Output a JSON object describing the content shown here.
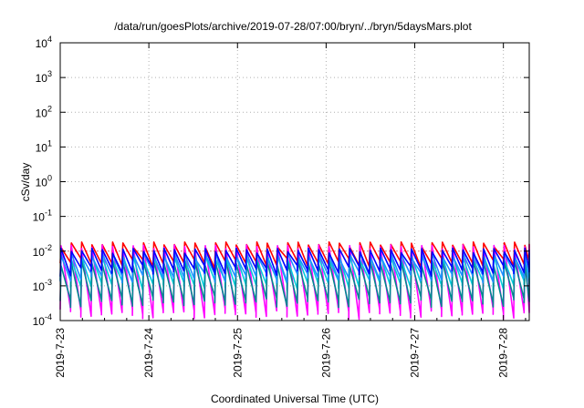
{
  "chart_data": {
    "type": "line",
    "title": "/data/run/goesPlots/archive/2019-07-28/07:00/bryn/../bryn/5daysMars.plot",
    "xlabel": "Coordinated Universal Time (UTC)",
    "ylabel": "cSv/day",
    "y_scale": "log",
    "ylim": [
      0.0001,
      10000
    ],
    "xlim": [
      "2019-07-23 00:00",
      "2019-07-28 07:00"
    ],
    "y_ticks": [
      {
        "value": 0.0001,
        "base": "10",
        "exp": "-4"
      },
      {
        "value": 0.001,
        "base": "10",
        "exp": "-3"
      },
      {
        "value": 0.01,
        "base": "10",
        "exp": "-2"
      },
      {
        "value": 0.1,
        "base": "10",
        "exp": "-1"
      },
      {
        "value": 1,
        "base": "10",
        "exp": "0"
      },
      {
        "value": 10,
        "base": "10",
        "exp": "1"
      },
      {
        "value": 100,
        "base": "10",
        "exp": "2"
      },
      {
        "value": 1000,
        "base": "10",
        "exp": "3"
      },
      {
        "value": 10000,
        "base": "10",
        "exp": "4"
      }
    ],
    "x_ticks": [
      {
        "day": 0,
        "label": "2019-7-23"
      },
      {
        "day": 1,
        "label": "2019-7-24"
      },
      {
        "day": 2,
        "label": "2019-7-25"
      },
      {
        "day": 3,
        "label": "2019-7-26"
      },
      {
        "day": 4,
        "label": "2019-7-27"
      },
      {
        "day": 5,
        "label": "2019-7-28"
      }
    ],
    "grid": true,
    "reference_line": {
      "value": 0.01,
      "color": "#e08080"
    },
    "sawtooth": {
      "teeth_per_day": 8.6,
      "x_end_day": 5.2917
    },
    "series": [
      {
        "color": "#ff0000",
        "peak": 0.016,
        "trough": 0.0045
      },
      {
        "color": "#ff00ff",
        "peak": 0.013,
        "trough": 0.00016
      },
      {
        "color": "#00ccdd",
        "peak": 0.0065,
        "trough": 0.0011
      },
      {
        "color": "#008890",
        "peak": 0.0045,
        "trough": 0.00035
      },
      {
        "color": "#1e90ff",
        "peak": 0.0075,
        "trough": 0.0018
      },
      {
        "color": "#0000ff",
        "peak": 0.0105,
        "trough": 0.0028
      }
    ]
  }
}
